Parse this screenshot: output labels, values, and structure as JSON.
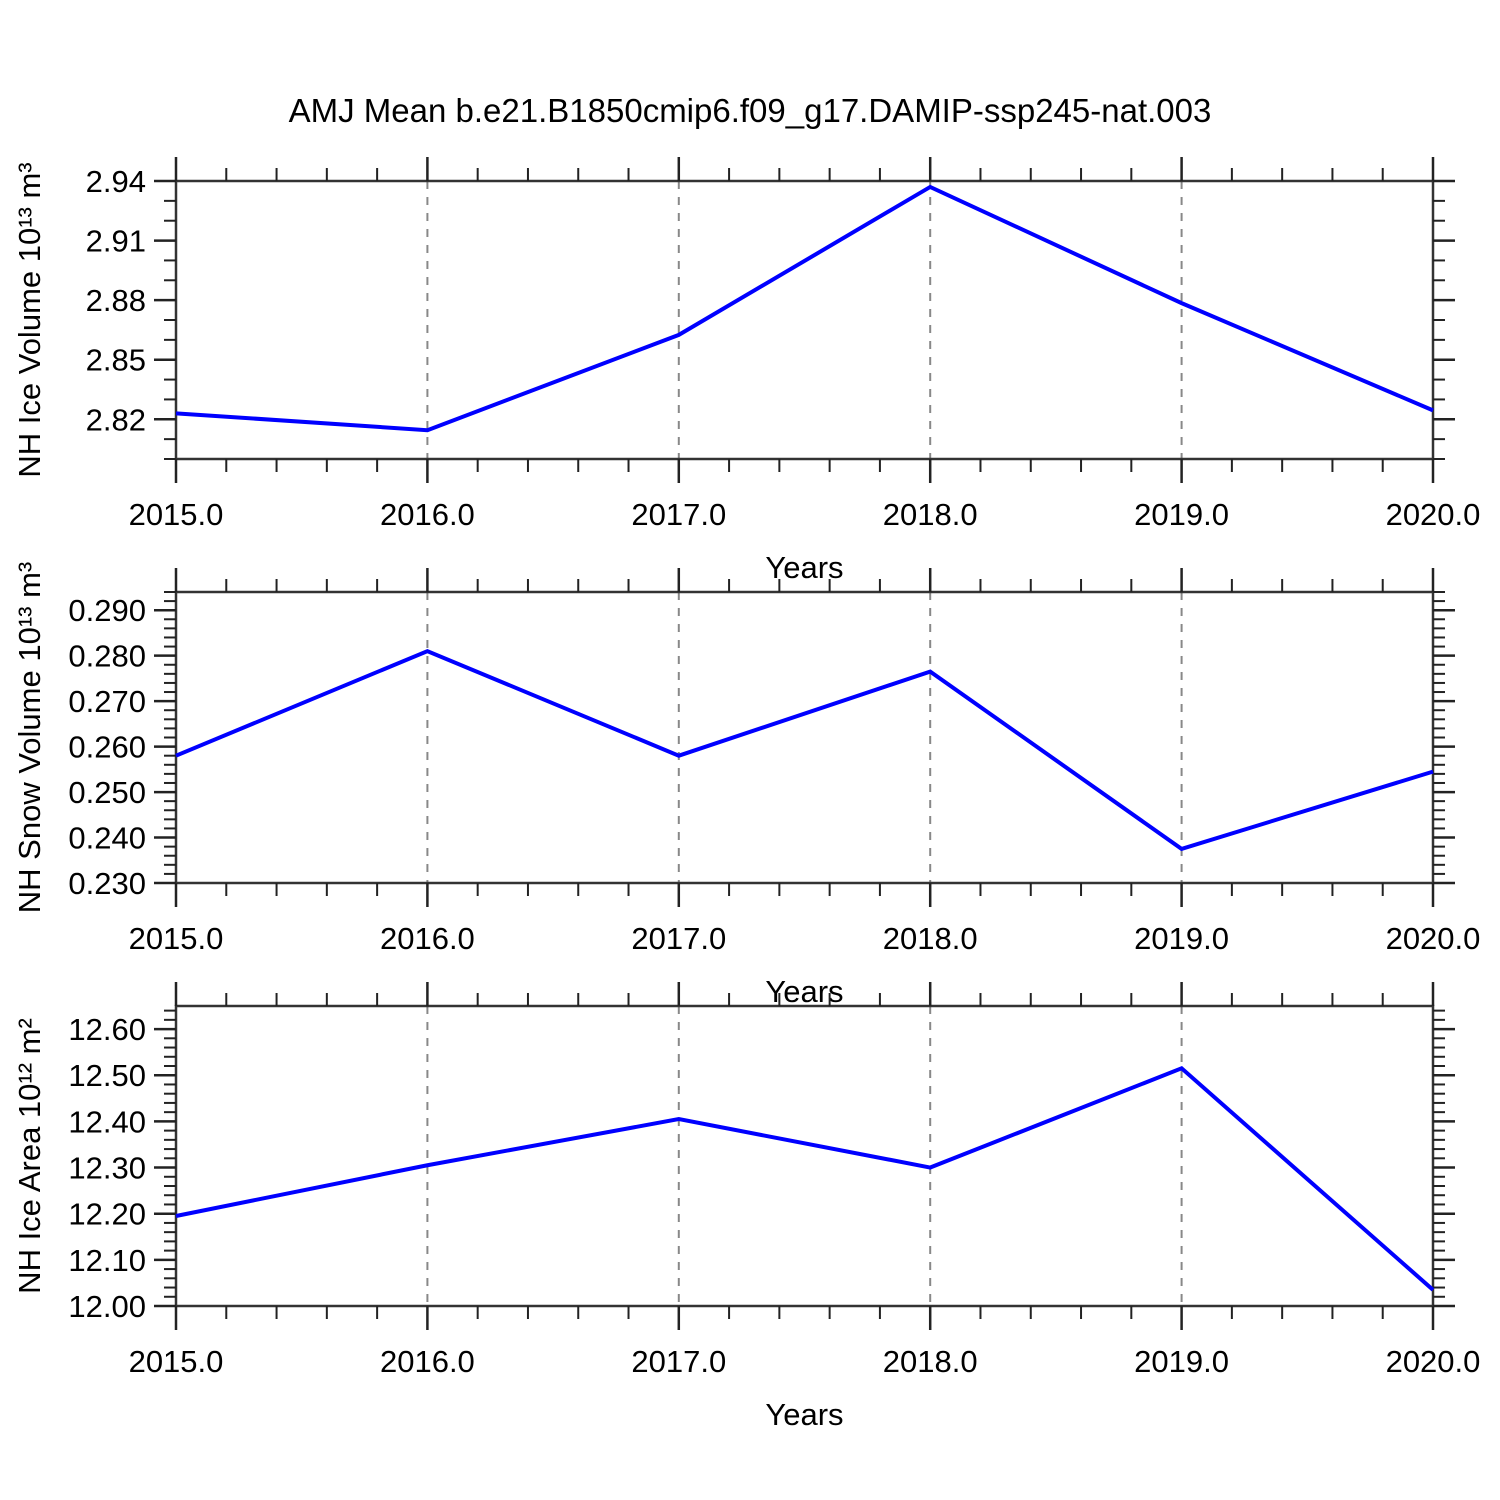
{
  "title": "AMJ Mean b.e21.B1850cmip6.f09_g17.DAMIP-ssp245-nat.003",
  "colors": {
    "line": "#0000ff",
    "frame": "#333333",
    "tick": "#222222",
    "grid": "#888888",
    "text": "#000000"
  },
  "chart_data": [
    {
      "type": "line",
      "panel": "top",
      "xlabel": "Years",
      "ylabel": "NH Ice Volume 10¹³ m³",
      "x": [
        2015.0,
        2016.0,
        2017.0,
        2018.0,
        2019.0,
        2020.0
      ],
      "values": [
        2.823,
        2.8145,
        2.8625,
        2.937,
        2.8785,
        2.8245
      ],
      "xlim": [
        2015.0,
        2020.0
      ],
      "ylim": [
        2.8,
        2.94
      ],
      "xtick_labels": [
        "2015.0",
        "2016.0",
        "2017.0",
        "2018.0",
        "2019.0",
        "2020.0"
      ],
      "ytick_values": [
        2.82,
        2.85,
        2.88,
        2.91,
        2.94
      ],
      "ytick_labels": [
        "2.82",
        "2.85",
        "2.88",
        "2.91",
        "2.94"
      ],
      "y_minor_step": 0.01,
      "x_minor_step": 0.2,
      "grid_x": [
        2016,
        2017,
        2018,
        2019
      ],
      "grid": "vertical-dashed",
      "legend": "none"
    },
    {
      "type": "line",
      "panel": "middle",
      "xlabel": "Years",
      "ylabel": "NH Snow Volume 10¹³ m³",
      "x": [
        2015.0,
        2016.0,
        2017.0,
        2018.0,
        2019.0,
        2020.0
      ],
      "values": [
        0.258,
        0.281,
        0.258,
        0.2765,
        0.2375,
        0.2545
      ],
      "xlim": [
        2015.0,
        2020.0
      ],
      "ylim": [
        0.23,
        0.294
      ],
      "xtick_labels": [
        "2015.0",
        "2016.0",
        "2017.0",
        "2018.0",
        "2019.0",
        "2020.0"
      ],
      "ytick_values": [
        0.23,
        0.24,
        0.25,
        0.26,
        0.27,
        0.28,
        0.29
      ],
      "ytick_labels": [
        "0.230",
        "0.240",
        "0.250",
        "0.260",
        "0.270",
        "0.280",
        "0.290"
      ],
      "y_minor_step": 0.002,
      "x_minor_step": 0.2,
      "grid_x": [
        2016,
        2017,
        2018,
        2019
      ],
      "grid": "vertical-dashed",
      "legend": "none"
    },
    {
      "type": "line",
      "panel": "bottom",
      "xlabel": "Years",
      "ylabel": "NH Ice Area 10¹² m²",
      "x": [
        2015.0,
        2016.0,
        2017.0,
        2018.0,
        2019.0,
        2020.0
      ],
      "values": [
        12.195,
        12.305,
        12.405,
        12.3,
        12.515,
        12.035
      ],
      "xlim": [
        2015.0,
        2020.0
      ],
      "ylim": [
        12.0,
        12.65
      ],
      "xtick_labels": [
        "2015.0",
        "2016.0",
        "2017.0",
        "2018.0",
        "2019.0",
        "2020.0"
      ],
      "ytick_values": [
        12.0,
        12.1,
        12.2,
        12.3,
        12.4,
        12.5,
        12.6
      ],
      "ytick_labels": [
        "12.00",
        "12.10",
        "12.20",
        "12.30",
        "12.40",
        "12.50",
        "12.60"
      ],
      "y_minor_step": 0.02,
      "x_minor_step": 0.2,
      "grid_x": [
        2016,
        2017,
        2018,
        2019
      ],
      "grid": "vertical-dashed",
      "legend": "none"
    }
  ]
}
